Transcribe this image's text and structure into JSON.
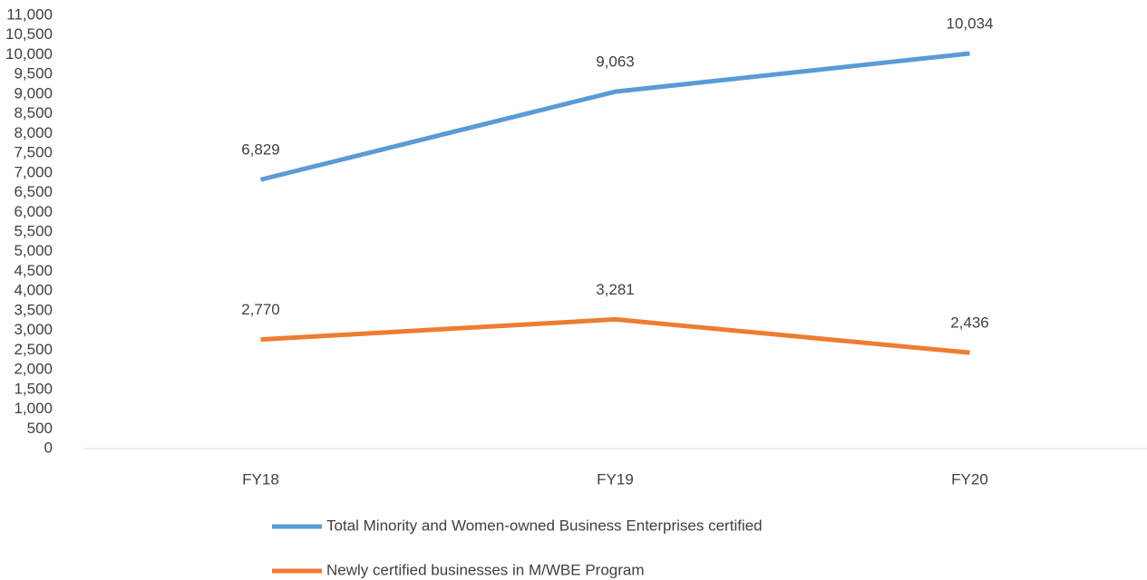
{
  "chart_data": {
    "type": "line",
    "categories": [
      "FY18",
      "FY19",
      "FY20"
    ],
    "series": [
      {
        "name": "Total Minority and Women-owned Business Enterprises certified",
        "color": "#5b9bd5",
        "values": [
          6829,
          9063,
          10034
        ],
        "value_labels": [
          "6,829",
          "9,063",
          "10,034"
        ]
      },
      {
        "name": "Newly certified businesses in M/WBE Program",
        "color": "#ed7d31",
        "values": [
          2770,
          3281,
          2436
        ],
        "value_labels": [
          "2,770",
          "3,281",
          "2,436"
        ]
      }
    ],
    "ylim": [
      0,
      11000
    ],
    "yticks": [
      0,
      500,
      {
        "value": 1000,
        "label": "1,000"
      },
      {
        "value": 1500,
        "label": "1,500"
      },
      {
        "value": 2000,
        "label": "2,000"
      },
      {
        "value": 2500,
        "label": "2,500"
      },
      {
        "value": 3000,
        "label": "3,000"
      },
      {
        "value": 3500,
        "label": "3,500"
      },
      {
        "value": 4000,
        "label": "4,000"
      },
      {
        "value": 4500,
        "label": "4,500"
      },
      {
        "value": 5000,
        "label": "5,000"
      },
      {
        "value": 5500,
        "label": "5,500"
      },
      {
        "value": 6000,
        "label": "6,000"
      },
      {
        "value": 6500,
        "label": "6,500"
      },
      {
        "value": 7000,
        "label": "7,000"
      },
      {
        "value": 7500,
        "label": "7,500"
      },
      {
        "value": 8000,
        "label": "8,000"
      },
      {
        "value": 8500,
        "label": "8,500"
      },
      {
        "value": 9000,
        "label": "9,000"
      },
      {
        "value": 9500,
        "label": "9,500"
      },
      {
        "value": 10000,
        "label": "10,000"
      },
      {
        "value": 10500,
        "label": "10,500"
      },
      {
        "value": 11000,
        "label": "11,000"
      }
    ],
    "grid": false,
    "legend": "bottom"
  }
}
